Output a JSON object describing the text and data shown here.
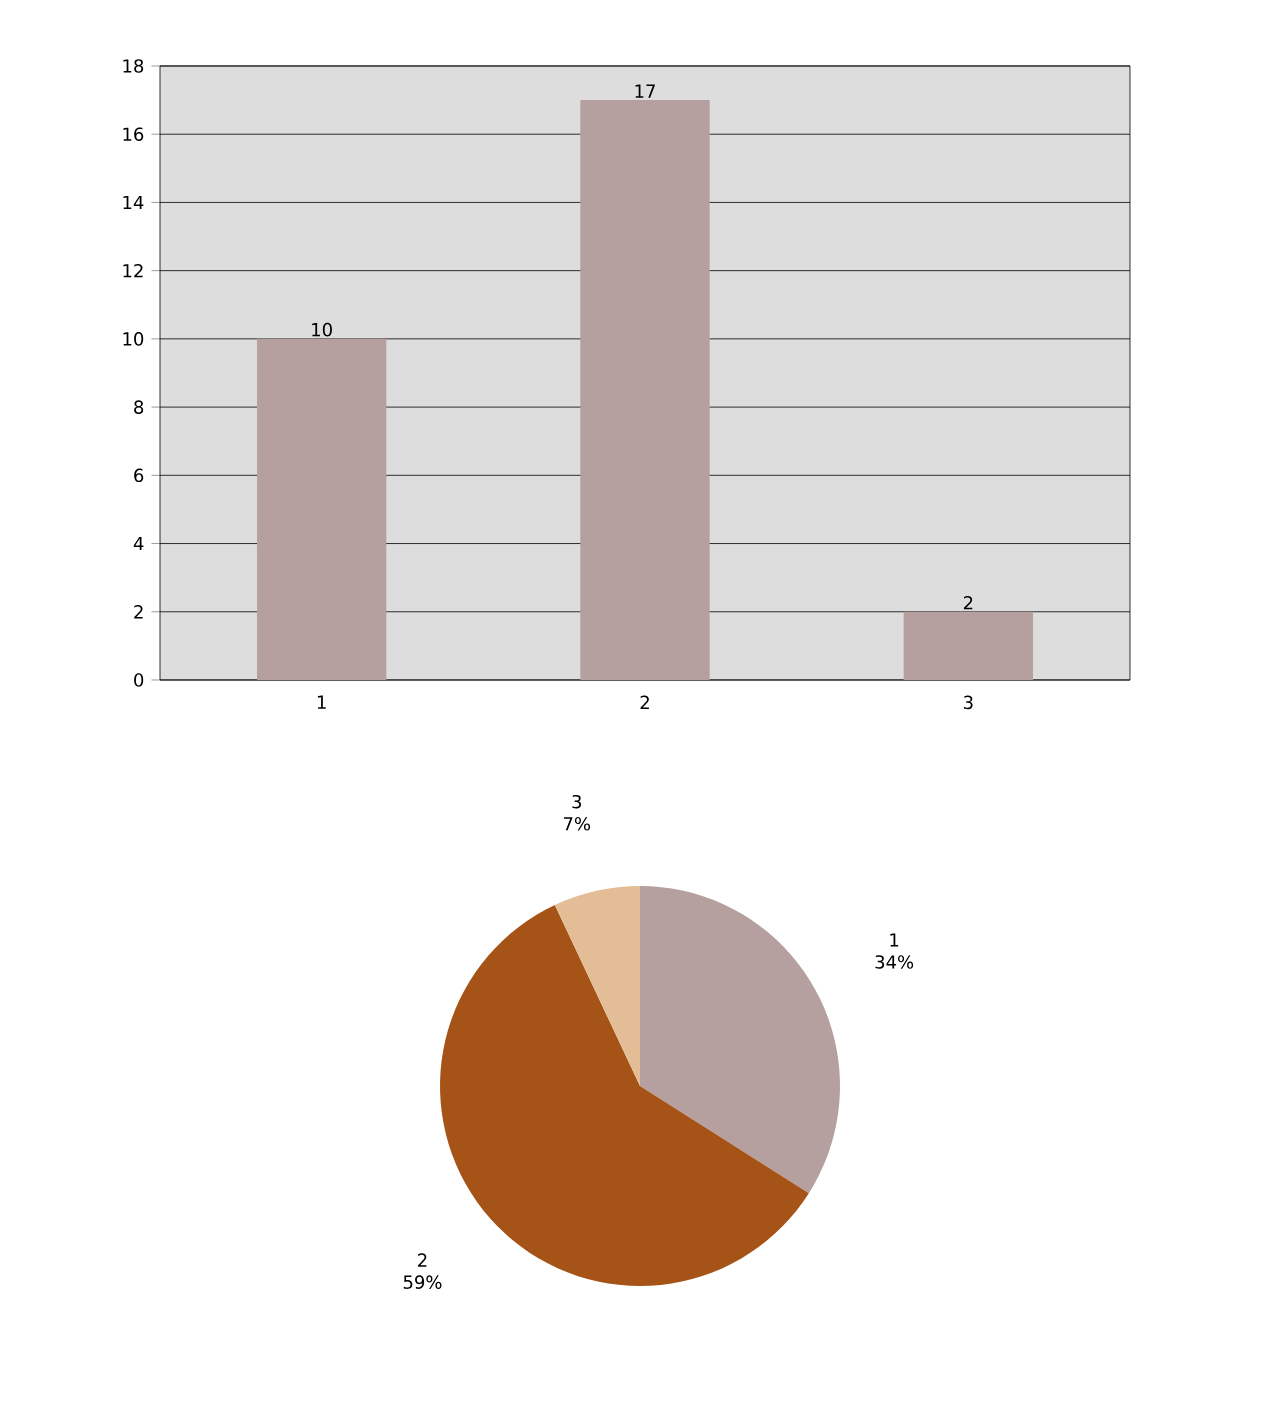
{
  "chart_data": [
    {
      "type": "bar",
      "categories": [
        "1",
        "2",
        "3"
      ],
      "values": [
        10,
        17,
        2
      ],
      "color": "#b5a09f",
      "ylim": [
        0,
        18
      ],
      "yticks": [
        0,
        2,
        4,
        6,
        8,
        10,
        12,
        14,
        16,
        18
      ],
      "grid": "y",
      "data_labels": true
    },
    {
      "type": "pie",
      "categories": [
        "1",
        "2",
        "3"
      ],
      "values": [
        34,
        59,
        7
      ],
      "value_labels": [
        "34%",
        "59%",
        "7%"
      ],
      "colors": [
        "#b5a09f",
        "#a65317",
        "#e3bd96"
      ]
    }
  ]
}
